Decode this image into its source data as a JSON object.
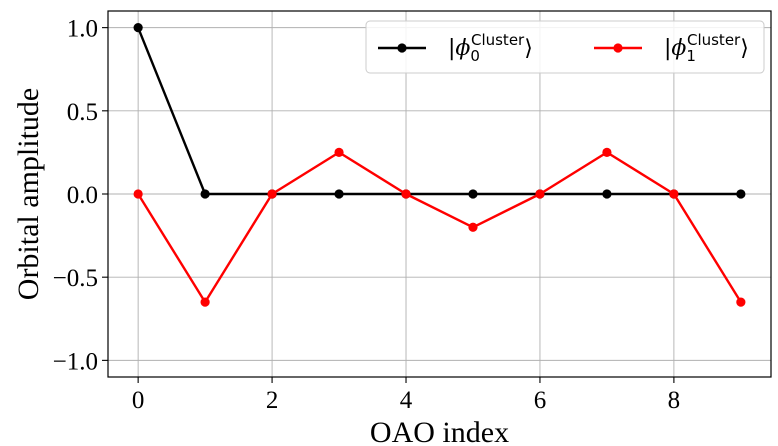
{
  "chart_data": {
    "type": "line",
    "title": "",
    "xlabel": "OAO index",
    "ylabel": "Orbital amplitude",
    "x": [
      0,
      1,
      2,
      3,
      4,
      5,
      6,
      7,
      8,
      9
    ],
    "xlim": [
      -0.45,
      9.45
    ],
    "ylim": [
      -1.1,
      1.1
    ],
    "xticks": [
      0,
      2,
      4,
      6,
      8
    ],
    "yticks": [
      -1.0,
      -0.5,
      0.0,
      0.5,
      1.0
    ],
    "xtick_labels": [
      "0",
      "2",
      "4",
      "6",
      "8"
    ],
    "ytick_labels": [
      "−1.0",
      "−0.5",
      "0.0",
      "0.5",
      "1.0"
    ],
    "grid": true,
    "legend_position": "top-right",
    "series": [
      {
        "name": "|ϕ₀^Cluster⟩",
        "legend_bar": "|",
        "legend_symbol": "ϕ",
        "legend_sub": "0",
        "legend_sup": "Cluster",
        "legend_close": "⟩",
        "color": "#000000",
        "values": [
          1.0,
          0.0,
          0.0,
          0.0,
          0.0,
          0.0,
          0.0,
          0.0,
          0.0,
          0.0
        ]
      },
      {
        "name": "|ϕ₁^Cluster⟩",
        "legend_bar": "|",
        "legend_symbol": "ϕ",
        "legend_sub": "1",
        "legend_sup": "Cluster",
        "legend_close": "⟩",
        "color": "#ff0000",
        "values": [
          0.0,
          -0.65,
          0.0,
          0.25,
          0.0,
          -0.2,
          0.0,
          0.25,
          0.0,
          -0.65
        ]
      }
    ]
  }
}
